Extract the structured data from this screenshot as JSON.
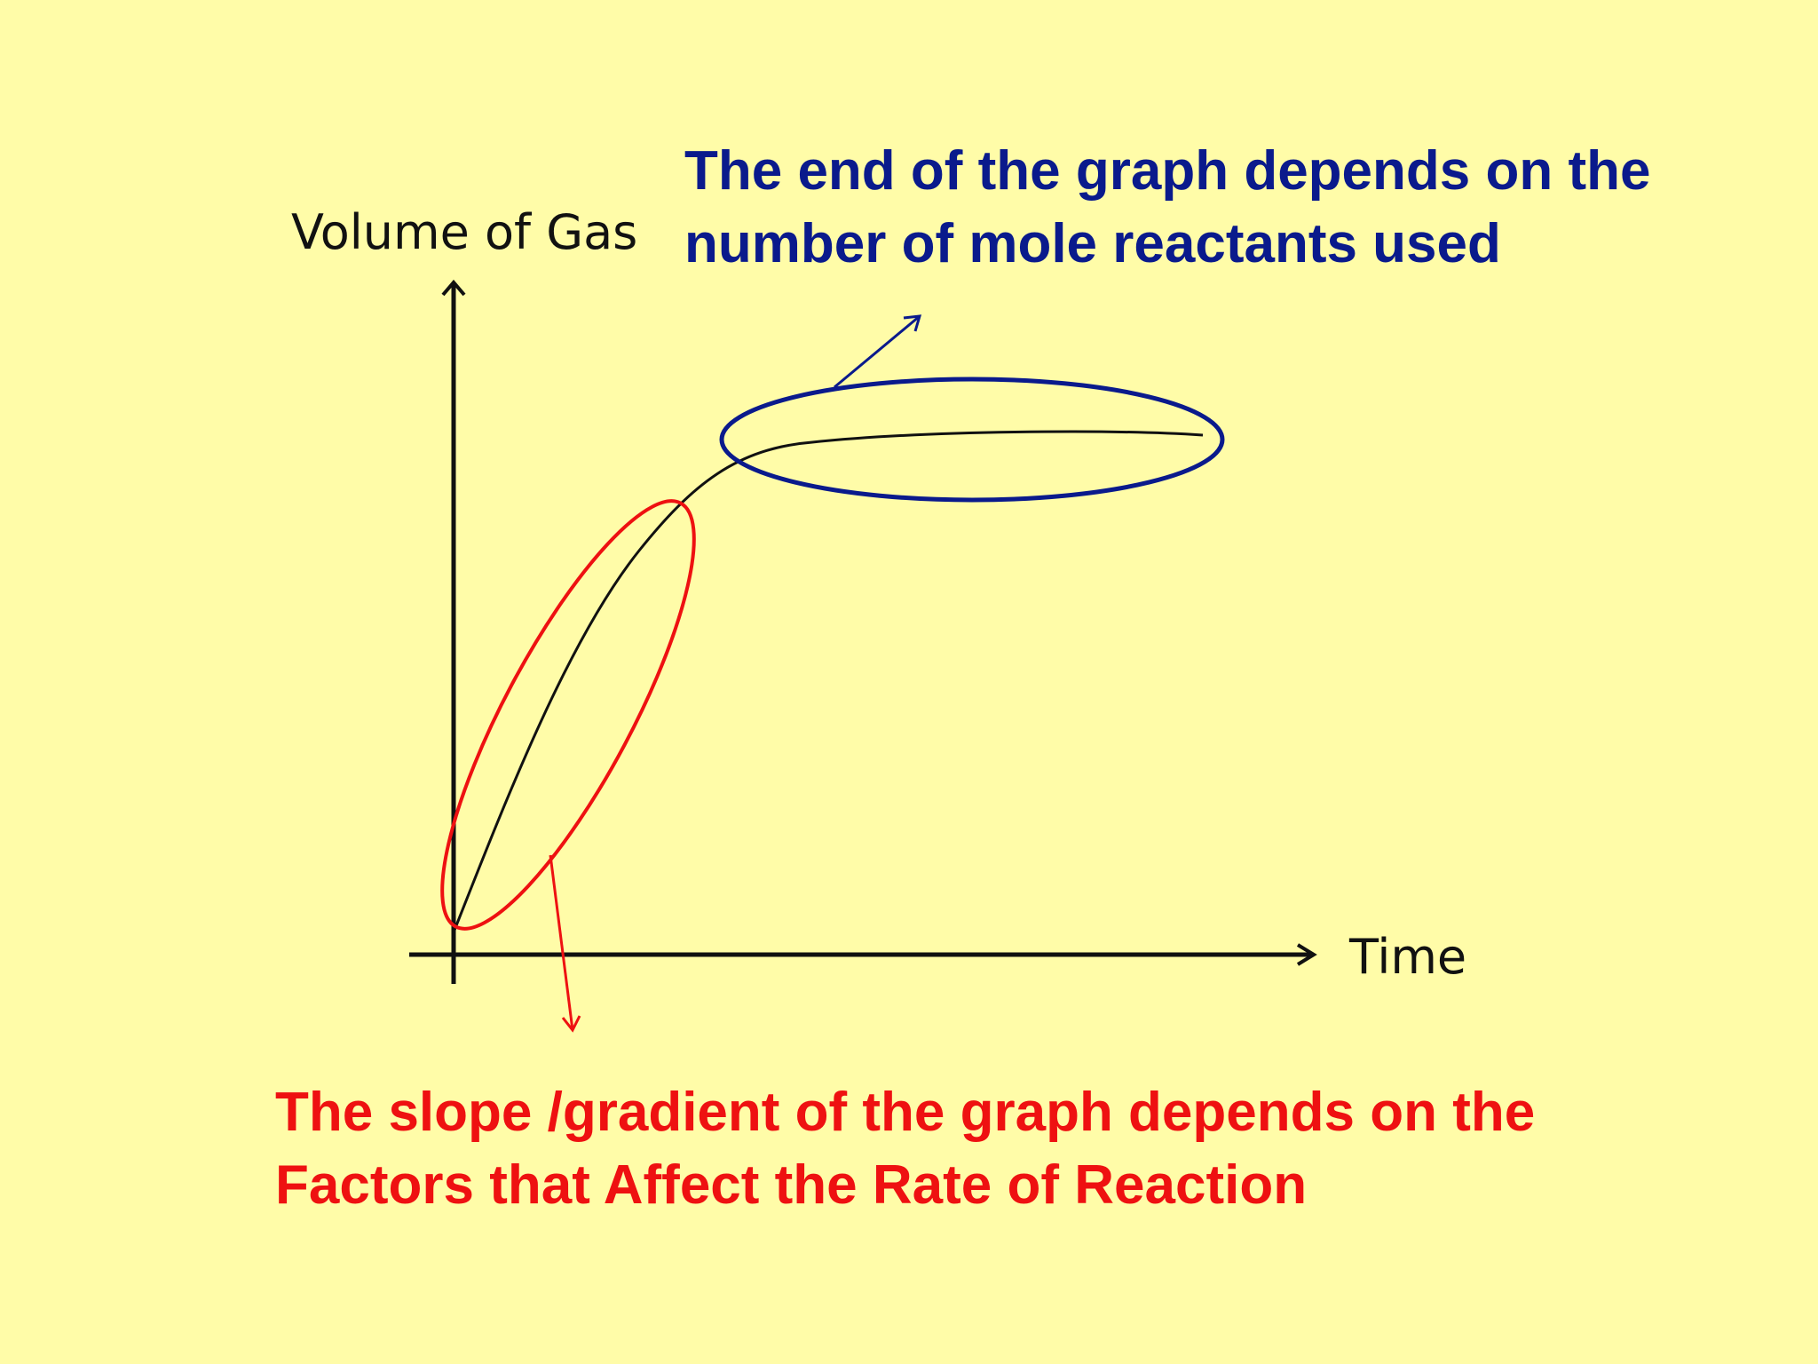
{
  "axes": {
    "y_label": "Volume of Gas",
    "x_label": "Time"
  },
  "annotations": {
    "end": {
      "line1": "The end of the graph depends on the",
      "line2": "number of mole reactants used"
    },
    "slope": {
      "line1": "The slope /gradient of the graph depends on the",
      "line2": "Factors that Affect the Rate of Reaction"
    }
  },
  "colors": {
    "background": "#FFFCA8",
    "end_annotation": "#0A1A8C",
    "slope_annotation": "#EE1111",
    "curve": "#111111",
    "axes": "#111111"
  }
}
